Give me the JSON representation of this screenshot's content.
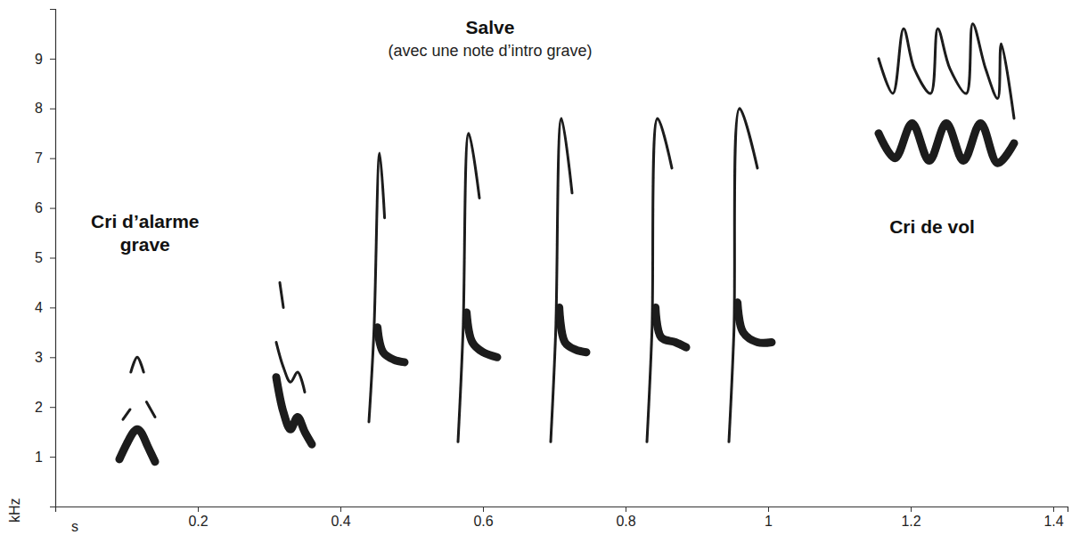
{
  "chart_data": {
    "type": "spectrogram",
    "x_label": "s",
    "y_label": "kHz",
    "xlim": [
      0,
      1.42
    ],
    "ylim": [
      0,
      10
    ],
    "xticks": [
      0.2,
      0.4,
      0.6,
      0.8,
      1,
      1.2,
      1.4
    ],
    "yticks": [
      1,
      2,
      3,
      4,
      5,
      6,
      7,
      8,
      9
    ],
    "color": "#1a1a1a",
    "annotations": [
      {
        "text": [
          "Cri d’alarme",
          "grave"
        ],
        "x": 0.126,
        "y": 5.7
      },
      {
        "text": [
          "Salve"
        ],
        "subtext": "(avec une note d’intro grave)",
        "x": 0.61,
        "y": 9.6
      },
      {
        "text": [
          "Cri de vol"
        ],
        "x": 1.23,
        "y": 5.6
      }
    ],
    "series": [
      {
        "x": [
          0.09,
          0.1,
          0.11,
          0.115,
          0.12,
          0.13,
          0.14
        ],
        "values": [
          0.95,
          1.25,
          1.5,
          1.55,
          1.5,
          1.2,
          0.9
        ],
        "line_style": "thick"
      },
      {
        "x": [
          0.095,
          0.105
        ],
        "values": [
          1.75,
          1.95
        ],
        "line_style": "thin"
      },
      {
        "x": [
          0.106,
          0.115,
          0.124
        ],
        "values": [
          2.7,
          3.0,
          2.7
        ],
        "line_style": "thin"
      },
      {
        "x": [
          0.128,
          0.14
        ],
        "values": [
          2.1,
          1.8
        ],
        "line_style": "thin"
      },
      {
        "x": [
          0.31,
          0.32,
          0.33,
          0.34,
          0.35,
          0.36
        ],
        "values": [
          2.6,
          1.9,
          1.55,
          1.8,
          1.5,
          1.25
        ],
        "line_style": "thick"
      },
      {
        "x": [
          0.31,
          0.32,
          0.33,
          0.34,
          0.35
        ],
        "values": [
          3.3,
          2.8,
          2.5,
          2.7,
          2.3
        ],
        "line_style": "thin"
      },
      {
        "x": [
          0.315,
          0.32
        ],
        "values": [
          4.5,
          4.0
        ],
        "line_style": "thin"
      },
      {
        "x": [
          0.44,
          0.447,
          0.455,
          0.462
        ],
        "values": [
          1.7,
          3.5,
          7.1,
          5.8
        ],
        "line_style": "thin"
      },
      {
        "x": [
          0.452,
          0.46,
          0.475,
          0.49
        ],
        "values": [
          3.6,
          3.1,
          2.95,
          2.9
        ],
        "line_style": "thick"
      },
      {
        "x": [
          0.565,
          0.572,
          0.58,
          0.595
        ],
        "values": [
          1.3,
          3.5,
          7.5,
          6.2
        ],
        "line_style": "thin"
      },
      {
        "x": [
          0.577,
          0.585,
          0.6,
          0.62
        ],
        "values": [
          3.9,
          3.3,
          3.1,
          3.0
        ],
        "line_style": "thick"
      },
      {
        "x": [
          0.695,
          0.702,
          0.71,
          0.725
        ],
        "values": [
          1.3,
          3.5,
          7.8,
          6.3
        ],
        "line_style": "thin"
      },
      {
        "x": [
          0.707,
          0.715,
          0.73,
          0.745
        ],
        "values": [
          4.0,
          3.3,
          3.15,
          3.1
        ],
        "line_style": "thick"
      },
      {
        "x": [
          0.83,
          0.837,
          0.845,
          0.865
        ],
        "values": [
          1.3,
          3.5,
          7.8,
          6.8
        ],
        "line_style": "thin"
      },
      {
        "x": [
          0.842,
          0.85,
          0.87,
          0.885
        ],
        "values": [
          4.0,
          3.4,
          3.3,
          3.2
        ],
        "line_style": "thick"
      },
      {
        "x": [
          0.945,
          0.952,
          0.96,
          0.985
        ],
        "values": [
          1.3,
          3.5,
          8.0,
          6.8
        ],
        "line_style": "thin"
      },
      {
        "x": [
          0.957,
          0.965,
          0.985,
          1.005
        ],
        "values": [
          4.1,
          3.5,
          3.3,
          3.3
        ],
        "line_style": "thick"
      },
      {
        "x": [
          1.155,
          1.178,
          1.202,
          1.226,
          1.25,
          1.274,
          1.298,
          1.322,
          1.345
        ],
        "values": [
          7.5,
          7.0,
          7.7,
          6.95,
          7.7,
          6.95,
          7.7,
          6.9,
          7.3
        ],
        "line_style": "thick"
      },
      {
        "x": [
          1.155,
          1.175,
          1.19,
          1.205,
          1.228,
          1.238,
          1.255,
          1.278,
          1.287,
          1.305,
          1.322,
          1.327,
          1.345
        ],
        "values": [
          9.0,
          8.3,
          9.6,
          8.8,
          8.3,
          9.6,
          8.8,
          8.3,
          9.7,
          8.8,
          8.2,
          9.3,
          7.8
        ],
        "line_style": "thin"
      }
    ]
  }
}
